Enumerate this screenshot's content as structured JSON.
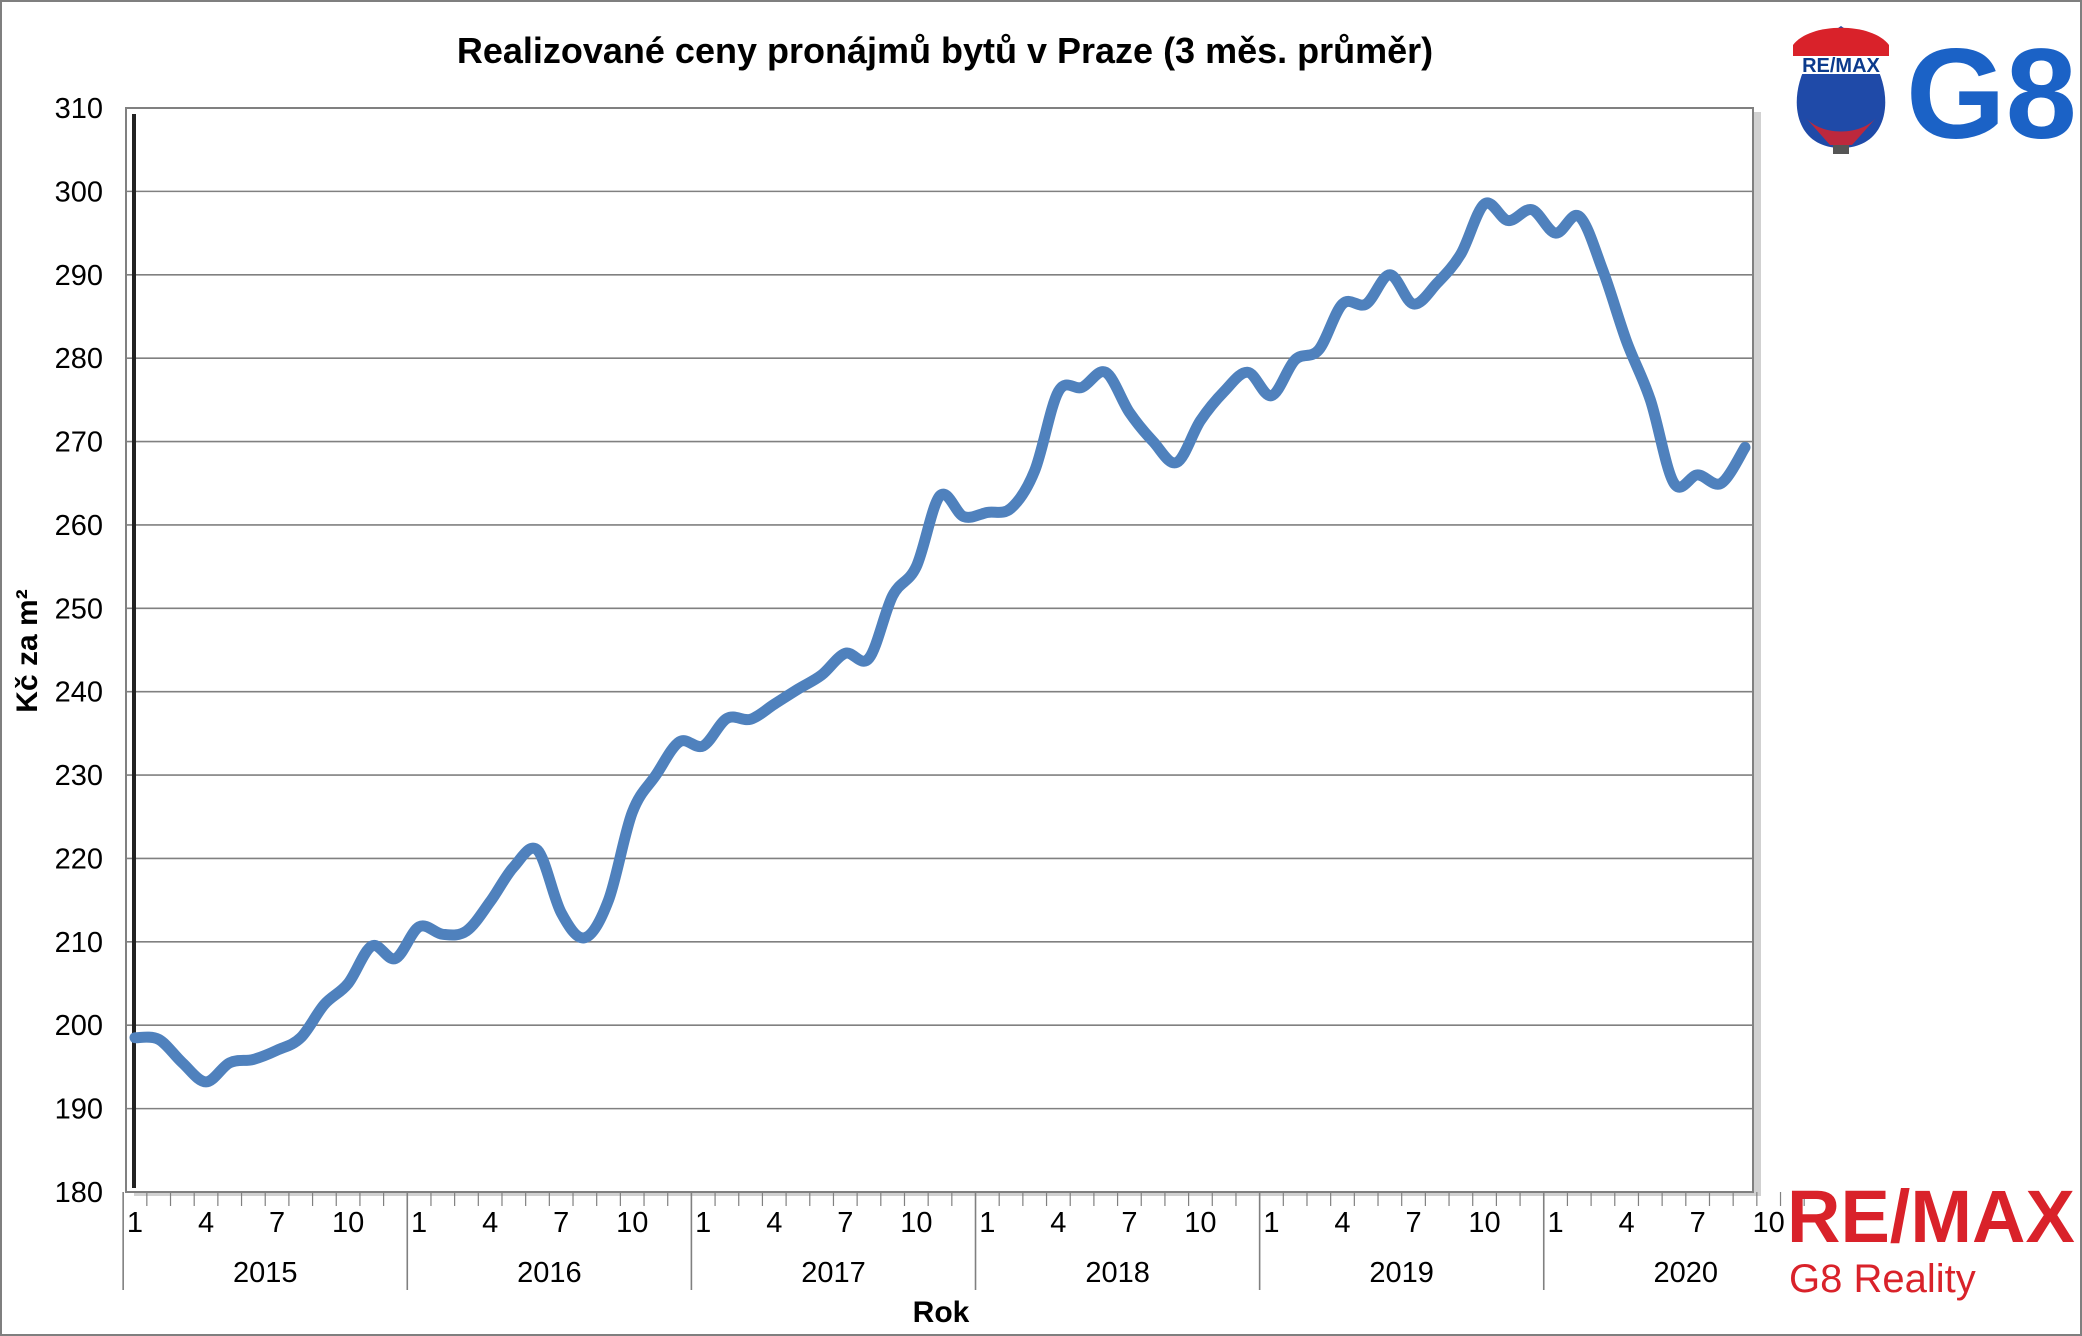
{
  "chart_data": {
    "type": "line",
    "title": "Realizované ceny pronájmů bytů v Praze (3 měs. průměr)",
    "ylabel": "Kč za m²",
    "xlabel": "Rok",
    "ylim": [
      180,
      310
    ],
    "yticks": [
      180,
      190,
      200,
      210,
      220,
      230,
      240,
      250,
      260,
      270,
      280,
      290,
      300,
      310
    ],
    "grid": true,
    "years": [
      "2015",
      "2016",
      "2017",
      "2018",
      "2019",
      "2020"
    ],
    "month_ticks": [
      "1",
      "4",
      "7",
      "10"
    ],
    "series": [
      {
        "color": "#4f81bd",
        "x_months": [
          "2015-01",
          "2015-02",
          "2015-03",
          "2015-04",
          "2015-05",
          "2015-06",
          "2015-07",
          "2015-08",
          "2015-09",
          "2015-10",
          "2015-11",
          "2015-12",
          "2016-01",
          "2016-02",
          "2016-03",
          "2016-04",
          "2016-05",
          "2016-06",
          "2016-07",
          "2016-08",
          "2016-09",
          "2016-10",
          "2016-11",
          "2016-12",
          "2017-01",
          "2017-02",
          "2017-03",
          "2017-04",
          "2017-05",
          "2017-06",
          "2017-07",
          "2017-08",
          "2017-09",
          "2017-10",
          "2017-11",
          "2017-12",
          "2018-01",
          "2018-02",
          "2018-03",
          "2018-04",
          "2018-05",
          "2018-06",
          "2018-07",
          "2018-08",
          "2018-09",
          "2018-10",
          "2018-11",
          "2018-12",
          "2019-01",
          "2019-02",
          "2019-03",
          "2019-04",
          "2019-05",
          "2019-06",
          "2019-07",
          "2019-08",
          "2019-09",
          "2019-10",
          "2019-11",
          "2019-12",
          "2020-01",
          "2020-02",
          "2020-03",
          "2020-04",
          "2020-05",
          "2020-06",
          "2020-07",
          "2020-08",
          "2020-09"
        ],
        "values": [
          198.5,
          198.3,
          195.5,
          193.2,
          195.5,
          195.9,
          197.0,
          198.5,
          202.5,
          205.0,
          209.5,
          208.0,
          211.8,
          210.9,
          211.3,
          214.8,
          219.0,
          221.0,
          213.5,
          210.5,
          215.0,
          225.5,
          230.0,
          234.0,
          233.5,
          236.8,
          236.7,
          238.5,
          240.3,
          242.0,
          244.6,
          244.0,
          251.5,
          255.0,
          263.5,
          261.0,
          261.5,
          262.0,
          266.5,
          276.0,
          276.5,
          278.3,
          273.5,
          270.0,
          267.5,
          272.5,
          276.0,
          278.3,
          275.5,
          279.8,
          281.0,
          286.5,
          286.5,
          290.0,
          286.5,
          289.0,
          292.5,
          298.5,
          296.5,
          297.8,
          295.0,
          297.0,
          290.5,
          282.0,
          275.0,
          265.0,
          266.0,
          265.0,
          269.3
        ]
      }
    ]
  },
  "branding": {
    "balloon_text": "RE/MAX",
    "g8_text": "G8",
    "remax_text": "RE/MAX",
    "subtitle": "G8 Reality",
    "colors": {
      "red": "#d9222a",
      "blue": "#1b62c6",
      "navy": "#0b3a8c"
    }
  }
}
